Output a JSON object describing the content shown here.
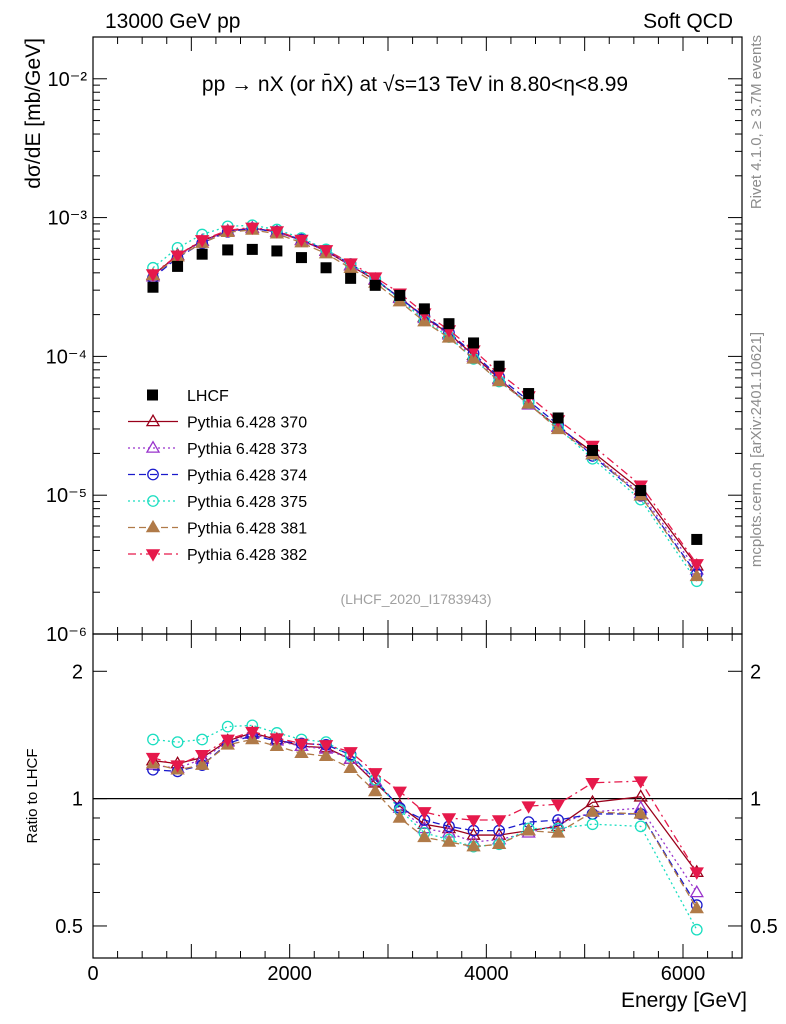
{
  "header": {
    "left": "13000 GeV pp",
    "right": "Soft QCD",
    "title": "pp → nX (or n̄X) at √s=13 TeV in 8.80<η<8.99",
    "side_top": "Rivet 4.1.0, ≥ 3.7M events",
    "side_bottom": "mcplots.cern.ch [arXiv:2401.10621]",
    "analysis_id": "(LHCF_2020_I1783943)"
  },
  "chart_data": [
    {
      "type": "scatter",
      "name": "main",
      "ylabel": "dσ/dE [mb/GeV]",
      "yscale": "log",
      "ylim": [
        1e-06,
        0.02
      ],
      "xlim": [
        0,
        6600
      ],
      "yticks": [
        {
          "value": 1e-06,
          "label": "10⁻⁶"
        },
        {
          "value": 1e-05,
          "label": "10⁻⁵"
        },
        {
          "value": 0.0001,
          "label": "10⁻⁴"
        },
        {
          "value": 0.001,
          "label": "10⁻³"
        },
        {
          "value": 0.01,
          "label": "10⁻²"
        }
      ],
      "x": [
        610,
        860,
        1110,
        1370,
        1620,
        1870,
        2120,
        2370,
        2620,
        2870,
        3120,
        3370,
        3620,
        3870,
        4130,
        4430,
        4730,
        5080,
        5570,
        6140
      ],
      "data": {
        "name": "LHCF",
        "values": [
          0.000315,
          0.000445,
          0.000545,
          0.000585,
          0.00059,
          0.000575,
          0.000515,
          0.000435,
          0.000365,
          0.000325,
          0.000275,
          0.00022,
          0.000172,
          0.000125,
          8.5e-05,
          5.4e-05,
          3.6e-05,
          2.1e-05,
          1.08e-05,
          4.8e-06
        ]
      },
      "series": [
        {
          "name": "Pythia 6.428 370",
          "color": "#99001a",
          "line": "solid",
          "marker": "triangle-open",
          "values": [
            0.000385,
            0.000535,
            0.00068,
            0.0008,
            0.00084,
            0.00079,
            0.000685,
            0.000575,
            0.00045,
            0.000355,
            0.000265,
            0.000192,
            0.000146,
            0.000102,
            6.9e-05,
            4.5e-05,
            3.1e-05,
            2.05e-05,
            1.09e-05,
            3.1e-06
          ]
        },
        {
          "name": "Pythia 6.428 373",
          "color": "#9933cc",
          "line": "dotted",
          "marker": "triangle-open",
          "values": [
            0.000375,
            0.000525,
            0.000675,
            0.000795,
            0.000835,
            0.000785,
            0.000685,
            0.000572,
            0.000452,
            0.000358,
            0.000262,
            0.000188,
            0.000143,
            9.9e-05,
            6.8e-05,
            4.48e-05,
            3.12e-05,
            1.96e-05,
            1.03e-05,
            2.9e-06
          ]
        },
        {
          "name": "Pythia 6.428 374",
          "color": "#1a1acc",
          "line": "dashed",
          "marker": "circle-open",
          "values": [
            0.000368,
            0.000515,
            0.000655,
            0.00079,
            0.000835,
            0.00079,
            0.000695,
            0.000585,
            0.000462,
            0.000362,
            0.000262,
            0.000195,
            0.000148,
            0.000105,
            7.1e-05,
            4.78e-05,
            3.22e-05,
            1.92e-05,
            9.9e-06,
            2.7e-06
          ]
        },
        {
          "name": "Pythia 6.428 375",
          "color": "#1adec0",
          "line": "dotted",
          "marker": "circle-open",
          "values": [
            0.000435,
            0.000605,
            0.000755,
            0.000865,
            0.00088,
            0.00082,
            0.000712,
            0.00059,
            0.000462,
            0.00036,
            0.000258,
            0.000182,
            0.000138,
            9.6e-05,
            6.6e-05,
            4.62e-05,
            3.05e-05,
            1.83e-05,
            9.3e-06,
            2.4e-06
          ]
        },
        {
          "name": "Pythia 6.428 381",
          "color": "#b07a48",
          "line": "dashed",
          "marker": "triangle-filled",
          "values": [
            0.000382,
            0.000522,
            0.000655,
            0.000785,
            0.000815,
            0.000765,
            0.00066,
            0.00055,
            0.000432,
            0.000338,
            0.000248,
            0.000178,
            0.000136,
            9.6e-05,
            6.6e-05,
            4.55e-05,
            2.98e-05,
            1.96e-05,
            9.9e-06,
            2.6e-06
          ]
        },
        {
          "name": "Pythia 6.428 382",
          "color": "#e6194b",
          "line": "dashdot",
          "marker": "triangle-down-filled",
          "values": [
            0.000392,
            0.000535,
            0.00069,
            0.00081,
            0.00085,
            0.0008,
            0.000695,
            0.000585,
            0.00047,
            0.000372,
            0.000285,
            0.000205,
            0.000155,
            0.000111,
            7.6e-05,
            5.18e-05,
            3.48e-05,
            2.28e-05,
            1.18e-05,
            3.2e-06
          ]
        }
      ]
    },
    {
      "type": "line",
      "name": "ratio",
      "ylabel": "Ratio to LHCF",
      "xlabel": "Energy [GeV]",
      "yscale": "log",
      "ylim": [
        0.42,
        2.45
      ],
      "xlim": [
        0,
        6600
      ],
      "yticks": [
        {
          "value": 0.5,
          "label": "0.5"
        },
        {
          "value": 1,
          "label": "1"
        },
        {
          "value": 2,
          "label": "2"
        }
      ],
      "xticks": [
        {
          "value": 0,
          "label": "0"
        },
        {
          "value": 2000,
          "label": "2000"
        },
        {
          "value": 4000,
          "label": "4000"
        },
        {
          "value": 6000,
          "label": "6000"
        }
      ],
      "reference": 1,
      "x": [
        610,
        860,
        1110,
        1370,
        1620,
        1870,
        2120,
        2370,
        2620,
        2870,
        3120,
        3370,
        3620,
        3870,
        4130,
        4430,
        4730,
        5080,
        5570,
        6140
      ],
      "series": [
        {
          "name": "Pythia 6.428 370",
          "values": [
            1.23,
            1.21,
            1.25,
            1.37,
            1.43,
            1.38,
            1.33,
            1.32,
            1.24,
            1.09,
            0.96,
            0.87,
            0.85,
            0.82,
            0.82,
            0.84,
            0.86,
            0.98,
            1.01,
            0.67
          ]
        },
        {
          "name": "Pythia 6.428 373",
          "values": [
            1.2,
            1.18,
            1.24,
            1.36,
            1.42,
            1.37,
            1.33,
            1.31,
            1.24,
            1.1,
            0.95,
            0.85,
            0.83,
            0.79,
            0.8,
            0.83,
            0.87,
            0.93,
            0.95,
            0.6
          ]
        },
        {
          "name": "Pythia 6.428 374",
          "values": [
            1.17,
            1.16,
            1.2,
            1.35,
            1.41,
            1.37,
            1.35,
            1.34,
            1.27,
            1.11,
            0.95,
            0.89,
            0.86,
            0.84,
            0.84,
            0.88,
            0.89,
            0.92,
            0.92,
            0.56
          ]
        },
        {
          "name": "Pythia 6.428 375",
          "values": [
            1.38,
            1.36,
            1.38,
            1.48,
            1.49,
            1.43,
            1.38,
            1.36,
            1.26,
            1.11,
            0.94,
            0.83,
            0.8,
            0.77,
            0.78,
            0.85,
            0.85,
            0.87,
            0.86,
            0.49
          ]
        },
        {
          "name": "Pythia 6.428 381",
          "values": [
            1.21,
            1.17,
            1.2,
            1.34,
            1.38,
            1.33,
            1.28,
            1.26,
            1.18,
            1.04,
            0.9,
            0.81,
            0.79,
            0.77,
            0.78,
            0.84,
            0.83,
            0.93,
            0.92,
            0.55
          ]
        },
        {
          "name": "Pythia 6.428 382",
          "values": [
            1.25,
            1.2,
            1.27,
            1.38,
            1.44,
            1.39,
            1.35,
            1.34,
            1.29,
            1.15,
            1.04,
            0.93,
            0.9,
            0.89,
            0.89,
            0.96,
            0.97,
            1.09,
            1.1,
            0.67
          ]
        }
      ]
    }
  ]
}
